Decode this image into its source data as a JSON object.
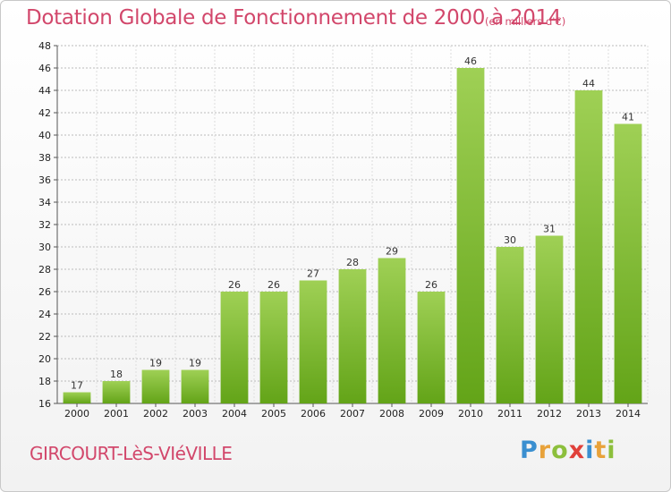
{
  "title": "Dotation Globale de Fonctionnement de 2000 à 2014",
  "unit": "(en milliers d'€)",
  "commune": "GIRCOURT-LèS-VIéVILLE",
  "logo": {
    "text": "Proxiti",
    "letters": [
      {
        "ch": "P",
        "color": "#3a8fd0"
      },
      {
        "ch": "r",
        "color": "#e8a23a"
      },
      {
        "ch": "o",
        "color": "#8cbf3c"
      },
      {
        "ch": "x",
        "color": "#e0403a"
      },
      {
        "ch": "i",
        "color": "#3a8fd0"
      },
      {
        "ch": "t",
        "color": "#e8a23a"
      },
      {
        "ch": "i",
        "color": "#8cbf3c"
      }
    ]
  },
  "colors": {
    "title": "#d2476b",
    "bar_top": "#9fd055",
    "bar_bottom": "#63a418",
    "grid": "#bbbbbb"
  },
  "chart_data": {
    "type": "bar",
    "categories": [
      "2000",
      "2001",
      "2002",
      "2003",
      "2004",
      "2005",
      "2006",
      "2007",
      "2008",
      "2009",
      "2010",
      "2011",
      "2012",
      "2013",
      "2014"
    ],
    "values": [
      17,
      18,
      19,
      19,
      26,
      26,
      27,
      28,
      29,
      26,
      46,
      30,
      31,
      44,
      41
    ],
    "ylim": [
      16,
      48
    ],
    "ytick_step": 2,
    "grid": "horizontal dashed",
    "title": "Dotation Globale de Fonctionnement de 2000 à 2014",
    "xlabel": "",
    "ylabel": ""
  }
}
